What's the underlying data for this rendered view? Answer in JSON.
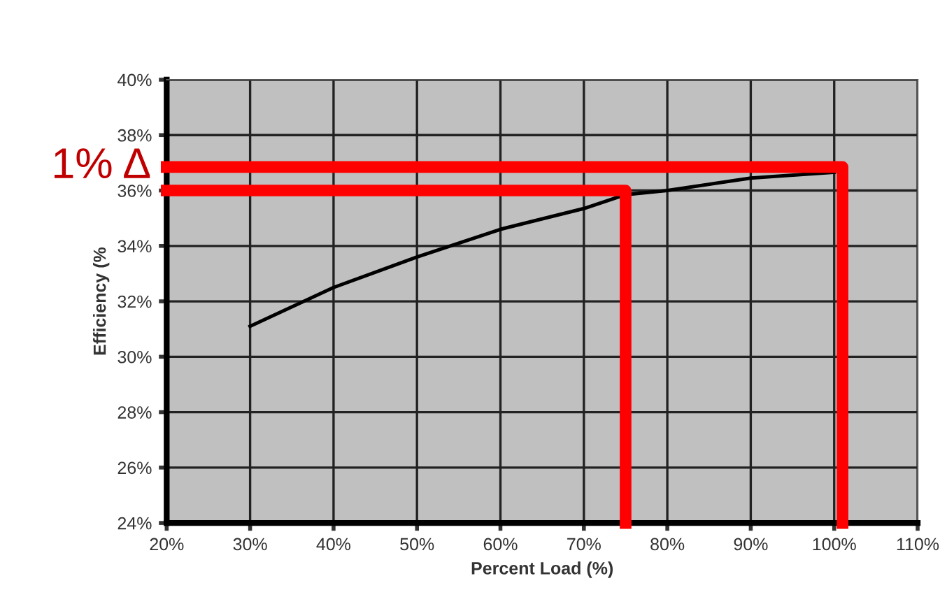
{
  "chart_data": {
    "type": "line",
    "xlabel": "Percent Load (%)",
    "ylabel": "Efficiency (%",
    "series": [
      {
        "color": "#000000",
        "x": [
          30,
          40,
          50,
          60,
          70,
          75,
          80,
          90,
          100
        ],
        "values": [
          31.1,
          32.5,
          33.6,
          34.6,
          35.35,
          35.85,
          36.0,
          36.45,
          36.66
        ]
      },
      {
        "color": "#ff0000",
        "x": [
          20,
          101,
          101
        ],
        "values": [
          36.85,
          36.85,
          24
        ]
      },
      {
        "color": "#ff0000",
        "x": [
          20,
          75,
          75
        ],
        "values": [
          36,
          36,
          24
        ]
      }
    ],
    "xlim": [
      20,
      110
    ],
    "xticks": [
      {
        "value": 20,
        "label": "20%"
      },
      {
        "value": 30,
        "label": "30%"
      },
      {
        "value": 40,
        "label": "40%"
      },
      {
        "value": 50,
        "label": "50%"
      },
      {
        "value": 60,
        "label": "60%"
      },
      {
        "value": 70,
        "label": "70%"
      },
      {
        "value": 80,
        "label": "80%"
      },
      {
        "value": 90,
        "label": "90%"
      },
      {
        "value": 100,
        "label": "100%"
      },
      {
        "value": 110,
        "label": "110%"
      }
    ],
    "ylim": [
      24,
      40
    ],
    "yticks": [
      {
        "value": 24,
        "label": "24%"
      },
      {
        "value": 26,
        "label": "26%"
      },
      {
        "value": 28,
        "label": "28%"
      },
      {
        "value": 30,
        "label": "30%"
      },
      {
        "value": 32,
        "label": "32%"
      },
      {
        "value": 34,
        "label": "34%"
      },
      {
        "value": 36,
        "label": "36%"
      },
      {
        "value": 38,
        "label": "38%"
      },
      {
        "value": 40,
        "label": "40%"
      }
    ],
    "grid": true,
    "marker": "none",
    "line_style": "solid",
    "annotations": [
      {
        "text": "1% Δ",
        "x": 20,
        "y": 36.85
      }
    ]
  }
}
